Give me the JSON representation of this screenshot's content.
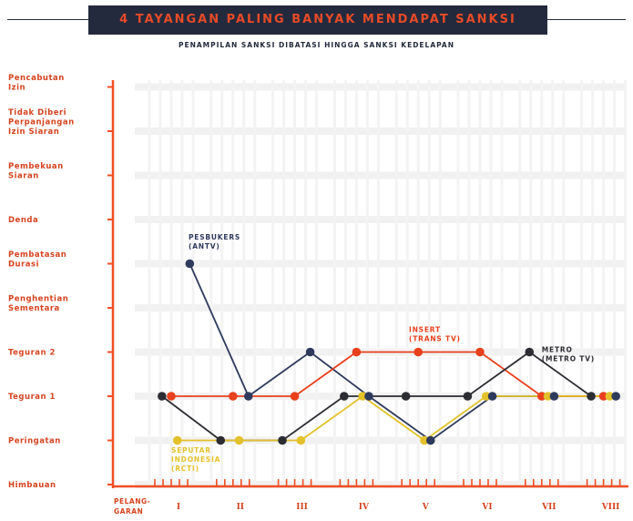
{
  "title": "4 TAYANGAN PALING BANYAK MENDAPAT SANKSI",
  "subtitle": "PENAMPILAN SANKSI DIBATASI HINGGA SANKSI KEDELAPAN",
  "colors": {
    "accent": "#e84a27",
    "navy": "#232a3d",
    "axis": "#f04e23"
  },
  "chart_data": {
    "type": "line",
    "title": "4 TAYANGAN PALING BANYAK MENDAPAT SANKSI",
    "subtitle": "PENAMPILAN SANKSI DIBATASI HINGGA SANKSI KEDELAPAN",
    "xlabel": "PELANG-GARAN",
    "xlabel_lines": [
      "PELANG-",
      "GARAN"
    ],
    "ylabel": "",
    "categories": [
      "I",
      "II",
      "III",
      "IV",
      "V",
      "VI",
      "VII",
      "VIII"
    ],
    "y_levels": [
      [
        "Himbauan"
      ],
      [
        "Peringatan"
      ],
      [
        "Teguran 1"
      ],
      [
        "Teguran 2"
      ],
      [
        "Penghentian",
        "Sementara"
      ],
      [
        "Pembatasan",
        "Durasi"
      ],
      [
        "Denda"
      ],
      [
        "Pembekuan",
        "Siaran"
      ],
      [
        "Tidak Diberi",
        "Perpanjangan",
        "Izin Siaran"
      ],
      [
        "Pencabutan",
        "Izin"
      ]
    ],
    "ylim": [
      0,
      9
    ],
    "grid": true,
    "series": [
      {
        "name": "PESBUKERS",
        "sub": "(ANTV)",
        "color": "#2e3a5c",
        "x": [
          1.3,
          2.25,
          3.25,
          4.2,
          5.2,
          6.2,
          7.2,
          8.2
        ],
        "y": [
          5,
          2,
          3,
          2,
          1,
          2,
          2,
          2
        ]
      },
      {
        "name": "INSERT",
        "sub": "(TRANS TV)",
        "color": "#e8401c",
        "x": [
          1.0,
          2.0,
          3.0,
          4.0,
          5.0,
          6.0,
          7.0,
          8.0
        ],
        "y": [
          2,
          2,
          2,
          3,
          3,
          3,
          2,
          2
        ]
      },
      {
        "name": "METRO",
        "sub": "(METRO TV)",
        "color": "#2c2c33",
        "x": [
          0.85,
          1.8,
          2.8,
          3.8,
          4.8,
          5.8,
          6.8,
          7.8
        ],
        "y": [
          2,
          1,
          1,
          2,
          2,
          2,
          3,
          2
        ]
      },
      {
        "name": "SEPUTAR INDONESIA",
        "sub": "(RCTI)",
        "color": "#e3c12a",
        "x": [
          1.1,
          2.1,
          3.1,
          4.1,
          5.1,
          6.1,
          7.1,
          8.1
        ],
        "y": [
          1,
          1,
          1,
          2,
          1,
          2,
          2,
          2
        ]
      }
    ],
    "series_labels": [
      {
        "lines": [
          "PESBUKERS",
          "(ANTV)"
        ],
        "color": "#2e3a5c",
        "x": 1.28,
        "y": 5.55
      },
      {
        "lines": [
          "INSERT",
          "(TRANS TV)"
        ],
        "color": "#e8401c",
        "x": 4.85,
        "y": 3.45
      },
      {
        "lines": [
          "METRO",
          "(METRO TV)"
        ],
        "color": "#2c2c33",
        "x": 7.0,
        "y": 3.0
      },
      {
        "lines": [
          "SEPUTAR",
          "INDONESIA",
          "(RCTI)"
        ],
        "color": "#e3c12a",
        "x": 1.0,
        "y": 0.72
      }
    ]
  }
}
